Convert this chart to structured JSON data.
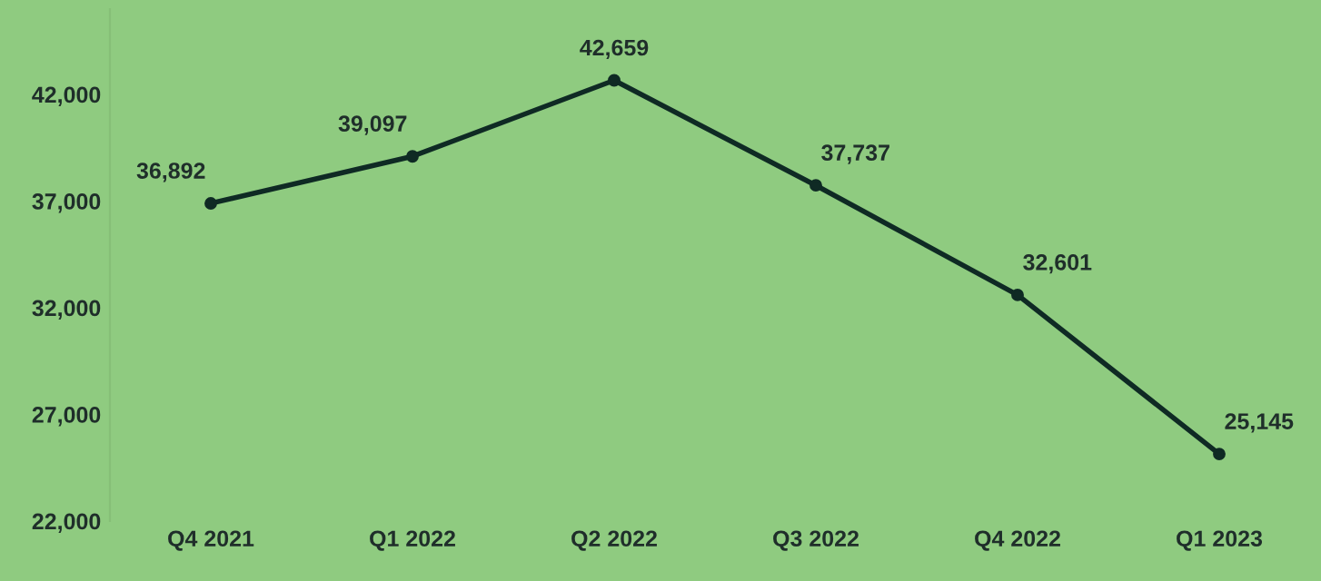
{
  "chart_data": {
    "type": "line",
    "categories": [
      "Q4 2021",
      "Q1 2022",
      "Q2 2022",
      "Q3 2022",
      "Q4 2022",
      "Q1 2023"
    ],
    "series": [
      {
        "color": "#0f2a24",
        "values": [
          36892,
          39097,
          42659,
          37737,
          32601,
          25145
        ]
      }
    ],
    "ylim": [
      22000,
      46000
    ],
    "yticks": [
      {
        "value": 22000,
        "label": "22,000"
      },
      {
        "value": 27000,
        "label": "27,000"
      },
      {
        "value": 32000,
        "label": "32,000"
      },
      {
        "value": 37000,
        "label": "37,000"
      },
      {
        "value": 42000,
        "label": "42,000"
      }
    ],
    "value_labels": [
      "36,892",
      "39,097",
      "42,659",
      "37,737",
      "32,601",
      "25,145"
    ],
    "marker": "circle",
    "line_style": "solid",
    "grid": false
  }
}
